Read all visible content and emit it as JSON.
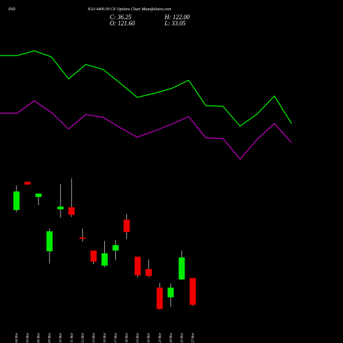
{
  "chart_data": [
    {
      "type": "candlestick",
      "title": "IND",
      "subtitle": "IGO 4400.00 CE Options Chart MunafaSutra.com",
      "annotations": [
        "C: 36.25",
        "H: 122.00",
        "O: 121.60",
        "L: 33.05"
      ],
      "categories": [
        "04 Mar",
        "05 Mar",
        "06 Mar",
        "09 Mar",
        "10 Mar",
        "11 Mar",
        "12 Mar",
        "13 Mar",
        "16 Mar",
        "17 Mar",
        "18 Mar",
        "19 Mar",
        "20 Mar",
        "23 Mar",
        "24 Mar",
        "25 Mar",
        "27 Mar"
      ],
      "open": [
        338.2,
        427.9,
        379.8,
        206.9,
        340.4,
        347.0,
        250.7,
        209.1,
        161.0,
        209.1,
        307.6,
        189.4,
        150.0,
        91.0,
        60.3,
        117.2,
        121.6
      ],
      "high": [
        417.0,
        428.8,
        391.0,
        279.1,
        421.4,
        438.9,
        279.1,
        209.5,
        239.8,
        241.9,
        325.1,
        190.0,
        180.7,
        106.3,
        104.1,
        209.1,
        122.0
      ],
      "low": [
        331.6,
        418.3,
        353.5,
        167.5,
        314.1,
        316.3,
        237.6,
        165.4,
        156.6,
        178.5,
        246.3,
        123.8,
        123.8,
        21.0,
        29.7,
        115.0,
        33.05
      ],
      "close": [
        397.3,
        419.2,
        390.7,
        270.4,
        349.2,
        322.9,
        246.3,
        174.1,
        200.4,
        226.6,
        268.2,
        130.4,
        128.2,
        23.1,
        91.0,
        187.2,
        36.25
      ],
      "up_color": "#00ee00",
      "down_color": "#ee0000",
      "ylim": [
        0,
        450
      ]
    },
    {
      "type": "line",
      "categories": [
        null,
        null,
        null,
        null,
        null,
        null,
        null,
        null,
        null,
        null,
        null,
        null,
        null,
        null,
        null,
        null,
        null,
        null
      ],
      "series": [
        {
          "color": "#00ff00",
          "values": [
            84.5,
            84.5,
            88,
            83.5,
            67.5,
            78,
            74.5,
            64.5,
            54,
            57,
            60.5,
            66.5,
            48,
            47.5,
            33,
            42,
            55,
            35
          ]
        },
        {
          "color": "#cc00cc",
          "values": [
            42.5,
            42.5,
            51.5,
            43,
            31,
            41.5,
            39.5,
            32,
            25,
            29.5,
            34.5,
            40,
            24.5,
            24,
            9,
            23.5,
            35,
            21
          ]
        }
      ],
      "ylim": [
        0,
        100
      ]
    }
  ]
}
